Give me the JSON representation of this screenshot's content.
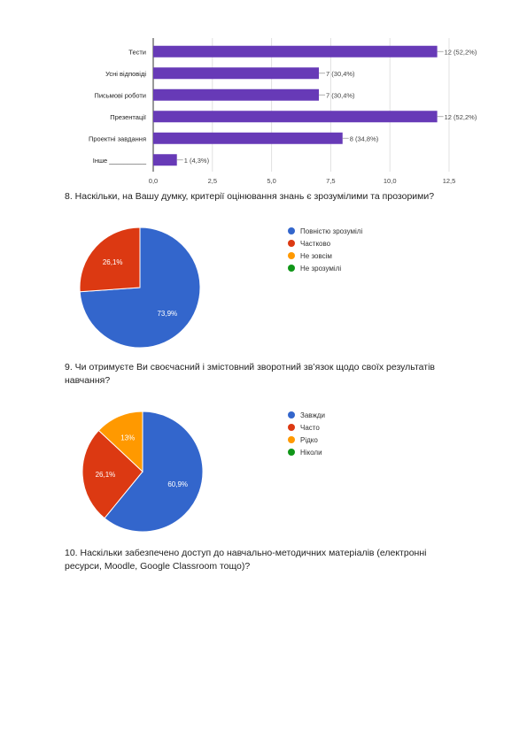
{
  "q7_chart": {
    "chart_data": {
      "type": "bar",
      "orientation": "horizontal",
      "categories": [
        "Тести",
        "Усні відповіді",
        "Письмові роботи",
        "Презентації",
        "Проектні завдання",
        "Інше __________"
      ],
      "values": [
        12,
        7,
        7,
        12,
        8,
        1
      ],
      "data_labels": [
        "12 (52,2%)",
        "7 (30,4%)",
        "7 (30,4%)",
        "12 (52,2%)",
        "8 (34,8%)",
        "1 (4,3%)"
      ],
      "xticks": [
        "0,0",
        "2,5",
        "5,0",
        "7,5",
        "10,0",
        "12,5"
      ],
      "xlim": [
        0,
        12.5
      ],
      "grid": true,
      "color": "#673ab7"
    }
  },
  "q8": {
    "text": "8. Наскільки, на Вашу думку, критерії оцінювання знань є зрозумілими та прозорими?",
    "chart_data": {
      "type": "pie",
      "labels": [
        "Повністю зрозумілі",
        "Частково",
        "Не зовсім",
        "Не зрозумілі"
      ],
      "values": [
        73.9,
        26.1,
        0,
        0
      ],
      "slice_labels": [
        "73,9%",
        "26,1%",
        "",
        ""
      ],
      "colors": [
        "#3366cc",
        "#dc3912",
        "#ff9900",
        "#109618"
      ],
      "legend": "right"
    }
  },
  "q9": {
    "text_line1": "9. Чи отримуєте Ви своєчасний і змістовний зворотний зв’язок щодо своїх результатів",
    "text_line2": "навчання?",
    "chart_data": {
      "type": "pie",
      "labels": [
        "Завжди",
        "Часто",
        "Рідко",
        "Ніколи"
      ],
      "values": [
        60.9,
        26.1,
        13,
        0
      ],
      "slice_labels": [
        "60,9%",
        "26,1%",
        "13%",
        ""
      ],
      "colors": [
        "#3366cc",
        "#dc3912",
        "#ff9900",
        "#109618"
      ],
      "legend": "right"
    }
  },
  "q10": {
    "text_line1": "10. Наскільки забезпечено доступ до навчально-методичних матеріалів (електронні",
    "text_line2": "ресурси, Moodle, Google Classroom тощо)?"
  }
}
